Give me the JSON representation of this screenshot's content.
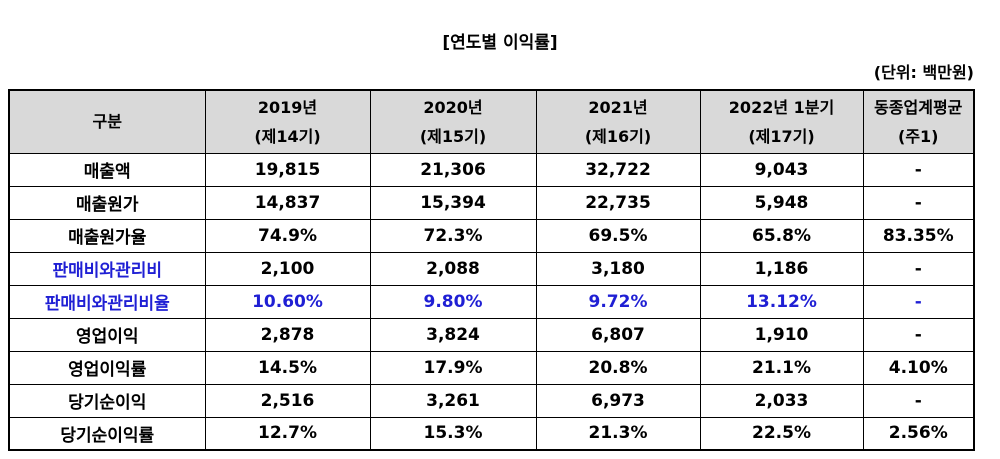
{
  "title": "[연도별 이익률]",
  "unit": "(단위: 백만원)",
  "table": {
    "header": {
      "category": "구분",
      "cols": [
        {
          "line1": "2019년",
          "line2": "(제14기)"
        },
        {
          "line1": "2020년",
          "line2": "(제15기)"
        },
        {
          "line1": "2021년",
          "line2": "(제16기)"
        },
        {
          "line1": "2022년 1분기",
          "line2": "(제17기)"
        },
        {
          "line1": "동종업계평균",
          "line2": "(주1)"
        }
      ]
    },
    "rows": [
      {
        "label": "매출액",
        "values": [
          "19,815",
          "21,306",
          "32,722",
          "9,043",
          "-"
        ]
      },
      {
        "label": "매출원가",
        "values": [
          "14,837",
          "15,394",
          "22,735",
          "5,948",
          "-"
        ]
      },
      {
        "label": "매출원가율",
        "values": [
          "74.9%",
          "72.3%",
          "69.5%",
          "65.8%",
          "83.35%"
        ]
      },
      {
        "label": "판매비와관리비",
        "values": [
          "2,100",
          "2,088",
          "3,180",
          "1,186",
          "-"
        ]
      },
      {
        "label": "판매비와관리비율",
        "values": [
          "10.60%",
          "9.80%",
          "9.72%",
          "13.12%",
          "-"
        ]
      },
      {
        "label": "영업이익",
        "values": [
          "2,878",
          "3,824",
          "6,807",
          "1,910",
          "-"
        ]
      },
      {
        "label": "영업이익률",
        "values": [
          "14.5%",
          "17.9%",
          "20.8%",
          "21.1%",
          "4.10%"
        ]
      },
      {
        "label": "당기순이익",
        "values": [
          "2,516",
          "3,261",
          "6,973",
          "2,033",
          "-"
        ]
      },
      {
        "label": "당기순이익률",
        "values": [
          "12.7%",
          "15.3%",
          "21.3%",
          "22.5%",
          "2.56%"
        ]
      }
    ]
  },
  "colors": {
    "highlight_text": "#1f1fd4",
    "header_bg": "#d9d9d9"
  }
}
